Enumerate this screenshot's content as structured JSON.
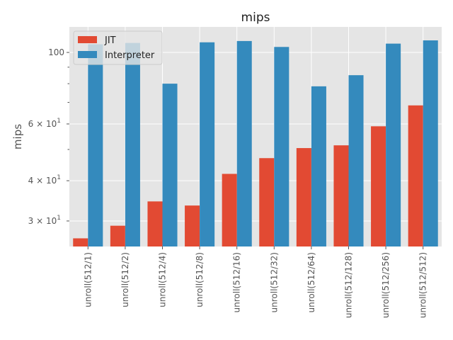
{
  "chart_data": {
    "type": "bar",
    "title": "mips",
    "xlabel": "",
    "ylabel": "mips",
    "y_scale": "log",
    "ylim": [
      25.0,
      120.0
    ],
    "grid": true,
    "legend_position": "upper-left",
    "categories": [
      "unroll(512/1)",
      "unroll(512/2)",
      "unroll(512/4)",
      "unroll(512/8)",
      "unroll(512/16)",
      "unroll(512/32)",
      "unroll(512/64)",
      "unroll(512/128)",
      "unroll(512/256)",
      "unroll(512/512)"
    ],
    "series": [
      {
        "name": "JIT",
        "color": "#E24A33",
        "values": [
          26.5,
          29.0,
          34.5,
          33.5,
          42.0,
          47.0,
          50.5,
          51.5,
          59.0,
          68.5
        ]
      },
      {
        "name": "Interpreter",
        "color": "#348ABD",
        "values": [
          106.0,
          107.0,
          80.0,
          107.5,
          108.5,
          104.0,
          78.5,
          85.0,
          106.5,
          109.0
        ]
      }
    ],
    "yticks": [
      {
        "value": 30,
        "label": "3 × 10^1",
        "mantissa": "3 × 10",
        "exp": "1"
      },
      {
        "value": 40,
        "label": "4 × 10^1",
        "mantissa": "4 × 10",
        "exp": "1"
      },
      {
        "value": 60,
        "label": "6 × 10^1",
        "mantissa": "6 × 10",
        "exp": "1"
      },
      {
        "value": 100,
        "label": "100",
        "mantissa": "100",
        "exp": ""
      }
    ],
    "minor_yticks": [
      50,
      70,
      80,
      90
    ]
  }
}
